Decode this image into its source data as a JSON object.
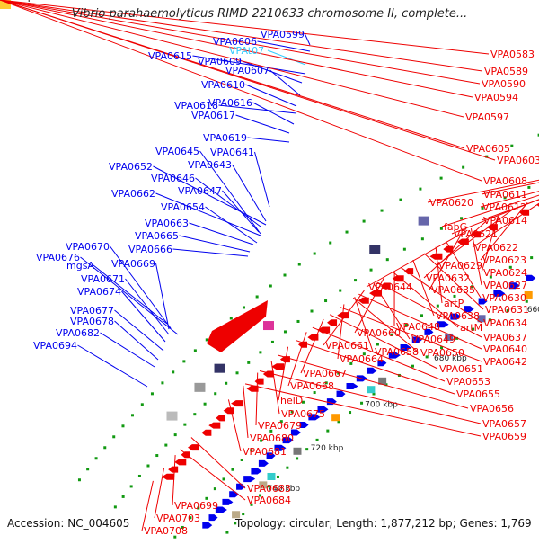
{
  "title": "Vibrio parahaemolyticus RIMD 2210633 chromosome II, complete...",
  "footer": {
    "accession_label": "Accession:",
    "accession": "NC_004605",
    "topology_label": "Topology:",
    "topology": "circular",
    "length_label": "Length:",
    "length": "1,877,212 bp",
    "genes_label": "Genes:",
    "genes": "1,769"
  },
  "colors": {
    "forward_strand": "#0000ee",
    "reverse_strand": "#ee0000",
    "rna": "#33ccff",
    "backbone": "#888888",
    "tick": "#119911"
  },
  "kbp_marks": [
    "600 kbp",
    "620 kbp",
    "640 kbp",
    "660 kbp",
    "680 kbp",
    "700 kbp",
    "720 kbp",
    "740 kbp"
  ],
  "forward_labels": [
    "VPA0599",
    "VPA0606",
    "VPAt07",
    "VPA0615",
    "VPA0609",
    "VPA0607",
    "VPA0610",
    "VPA0618",
    "VPA0616",
    "VPA0617",
    "VPA0619",
    "VPA0645",
    "VPA0641",
    "VPA0652",
    "VPA0643",
    "VPA0646",
    "VPA0662",
    "VPA0647",
    "VPA0654",
    "VPA0663",
    "VPA0665",
    "VPA0666",
    "VPA0676",
    "VPA0670",
    "mgsA",
    "VPA0669",
    "VPA0671",
    "VPA0674",
    "VPA0677",
    "VPA0678",
    "VPA0682",
    "VPA0694"
  ],
  "reverse_labels": [
    "VPA0583",
    "VPA0589",
    "VPA0590",
    "VPA0594",
    "VPA0597",
    "VPA0605",
    "VPA0603",
    "VPA0608",
    "VPA0611",
    "VPA0612",
    "VPA0620",
    "VPA0614",
    "VPA0621",
    "fabG",
    "VPA0622",
    "VPA0623",
    "VPA0629",
    "VPA0624",
    "VPA0632",
    "VPA0627",
    "VPA0644",
    "VPA0635",
    "VPA0630",
    "artP",
    "VPA0631",
    "VPA0638",
    "VPA0634",
    "artM",
    "VPA0648",
    "VPA0637",
    "VPA0660",
    "VPA0649",
    "VPA0640",
    "VPA0661",
    "VPA0658",
    "VPA0650",
    "VPA0642",
    "VPA0664",
    "VPA0651",
    "VPA0667",
    "VPA0653",
    "VPA0668",
    "VPA0655",
    "VPA0656",
    "helD",
    "VPA0675",
    "VPA0657",
    "VPA0679",
    "VPA0659",
    "VPA0680",
    "VPA0681",
    "VPA0683",
    "VPA0684",
    "VPA0699",
    "VPA0703",
    "VPA0708"
  ]
}
